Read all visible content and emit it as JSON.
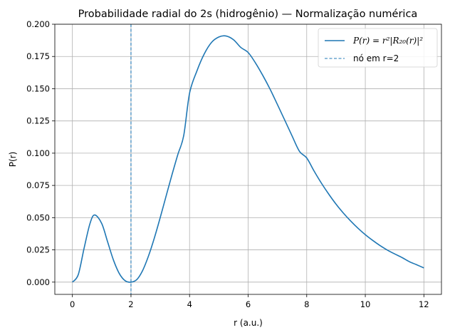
{
  "chart_data": {
    "type": "line",
    "title": "Probabilidade radial do 2s (hidrogênio) — Normalização numérica",
    "xlabel": "r (a.u.)",
    "ylabel": "P(r)",
    "xlim": [
      -0.6,
      12.6
    ],
    "ylim": [
      -0.0095,
      0.2
    ],
    "xticks": [
      0,
      2,
      4,
      6,
      8,
      10,
      12
    ],
    "xtick_labels": [
      "0",
      "2",
      "4",
      "6",
      "8",
      "10",
      "12"
    ],
    "yticks": [
      0.0,
      0.025,
      0.05,
      0.075,
      0.1,
      0.125,
      0.15,
      0.175,
      0.2
    ],
    "ytick_labels": [
      "0.000",
      "0.025",
      "0.050",
      "0.075",
      "0.100",
      "0.125",
      "0.150",
      "0.175",
      "0.200"
    ],
    "grid": true,
    "legend_position": "top-right",
    "series": [
      {
        "name": "P(r) = r²|R₂₀(r)|²",
        "style": "solid",
        "color": "#1f77b4",
        "x": [
          0,
          0.2,
          0.4,
          0.6,
          0.76,
          1.0,
          1.2,
          1.4,
          1.6,
          1.8,
          2.0,
          2.2,
          2.4,
          2.6,
          2.8,
          3.0,
          3.2,
          3.4,
          3.6,
          3.8,
          4.0,
          4.25,
          4.5,
          4.75,
          5.0,
          5.24,
          5.5,
          5.75,
          6.0,
          6.25,
          6.5,
          6.75,
          7.0,
          7.25,
          7.5,
          7.75,
          8.0,
          8.25,
          8.5,
          8.75,
          9.0,
          9.25,
          9.5,
          9.75,
          10.0,
          10.25,
          10.5,
          10.75,
          11.0,
          11.25,
          11.5,
          11.75,
          12.0
        ],
        "y": [
          0,
          0.0058,
          0.0264,
          0.0454,
          0.0521,
          0.0455,
          0.0314,
          0.0172,
          0.0067,
          0.0011,
          0,
          0.002,
          0.0091,
          0.0204,
          0.0344,
          0.0502,
          0.0668,
          0.0833,
          0.099,
          0.1136,
          0.1465,
          0.1637,
          0.1769,
          0.1859,
          0.1901,
          0.1909,
          0.188,
          0.182,
          0.1781,
          0.17,
          0.1603,
          0.1496,
          0.1377,
          0.1256,
          0.1134,
          0.1015,
          0.0963,
          0.0862,
          0.0768,
          0.0683,
          0.0605,
          0.0536,
          0.0474,
          0.0418,
          0.0368,
          0.0324,
          0.0284,
          0.0249,
          0.0219,
          0.0191,
          0.0159,
          0.0135,
          0.011
        ]
      },
      {
        "name": "nó em r=2",
        "style": "dashed",
        "color": "#1f77b4",
        "type": "vline",
        "x_value": 2
      }
    ]
  }
}
